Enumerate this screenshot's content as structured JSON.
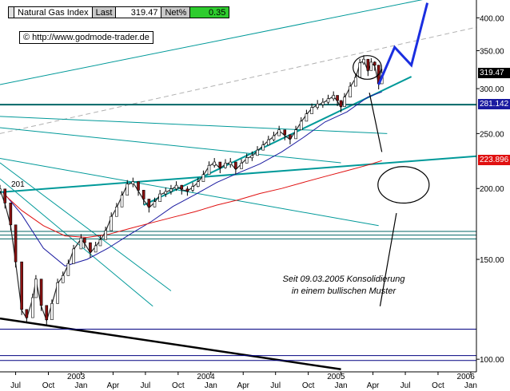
{
  "header": {
    "instrument": "Natural Gas Index",
    "last_label": "Last",
    "last_value": "319.47",
    "net_label": "Net%",
    "net_value": "0.35"
  },
  "source_url": "© http://www.godmode-trader.de",
  "annotation": {
    "line1": "Seit 09.03.2005 Konsolidierung",
    "line2": "in einem bullischen Muster"
  },
  "marker_201": "201",
  "price_badges": [
    {
      "label": "319.47",
      "value": 319.47,
      "color": "#000000"
    },
    {
      "label": "281.142",
      "value": 281.142,
      "color": "#1a1aa0"
    },
    {
      "label": "223.896",
      "value": 223.896,
      "color": "#e01010"
    }
  ],
  "chart_data": {
    "type": "line",
    "title": "Natural Gas Index",
    "yscale": "log",
    "ylim": [
      95,
      430
    ],
    "yticks": [
      100,
      150,
      200,
      250,
      300,
      350,
      400
    ],
    "ytick_labels": [
      "100.00",
      "150.00",
      "200.00",
      "250.00",
      "300.00",
      "350.00",
      "400.00"
    ],
    "xlim": [
      "2002-06-01",
      "2006-01-31"
    ],
    "xticks": [
      {
        "date": "2002-07-15",
        "label": "Jul"
      },
      {
        "date": "2002-10-15",
        "label": "Oct"
      },
      {
        "date": "2003-01-15",
        "label": "Jan"
      },
      {
        "date": "2003-04-15",
        "label": "Apr"
      },
      {
        "date": "2003-07-15",
        "label": "Jul"
      },
      {
        "date": "2003-10-15",
        "label": "Oct"
      },
      {
        "date": "2004-01-15",
        "label": "Jan"
      },
      {
        "date": "2004-04-15",
        "label": "Apr"
      },
      {
        "date": "2004-07-15",
        "label": "Jul"
      },
      {
        "date": "2004-10-15",
        "label": "Oct"
      },
      {
        "date": "2005-01-15",
        "label": "Jan"
      },
      {
        "date": "2005-04-15",
        "label": "Apr"
      },
      {
        "date": "2005-07-15",
        "label": "Jul"
      },
      {
        "date": "2005-10-15",
        "label": "Oct"
      },
      {
        "date": "2006-01-15",
        "label": "Jan"
      }
    ],
    "year_labels": [
      {
        "date": "2003-01-01",
        "label": "2003"
      },
      {
        "date": "2004-01-01",
        "label": "2004"
      },
      {
        "date": "2005-01-01",
        "label": "2005"
      },
      {
        "date": "2006-01-01",
        "label": "2006"
      }
    ],
    "series": [
      {
        "kind": "price",
        "color": "#8b1010",
        "points": [
          [
            "2002-06-01",
            199
          ],
          [
            "2002-06-15",
            188
          ],
          [
            "2002-07-01",
            172
          ],
          [
            "2002-07-15",
            148
          ],
          [
            "2002-08-01",
            122
          ],
          [
            "2002-08-15",
            118
          ],
          [
            "2002-09-01",
            128
          ],
          [
            "2002-09-10",
            138
          ],
          [
            "2002-09-25",
            124
          ],
          [
            "2002-10-10",
            117
          ],
          [
            "2002-10-25",
            125
          ],
          [
            "2002-11-10",
            136
          ],
          [
            "2002-11-25",
            140
          ],
          [
            "2002-12-10",
            147
          ],
          [
            "2002-12-25",
            156
          ],
          [
            "2003-01-15",
            163
          ],
          [
            "2003-01-25",
            160
          ],
          [
            "2003-02-10",
            154
          ],
          [
            "2003-02-25",
            158
          ],
          [
            "2003-03-10",
            162
          ],
          [
            "2003-03-25",
            168
          ],
          [
            "2003-04-10",
            178
          ],
          [
            "2003-04-25",
            185
          ],
          [
            "2003-05-10",
            194
          ],
          [
            "2003-05-25",
            203
          ],
          [
            "2003-06-10",
            205
          ],
          [
            "2003-06-25",
            198
          ],
          [
            "2003-07-10",
            191
          ],
          [
            "2003-07-25",
            185
          ],
          [
            "2003-08-10",
            189
          ],
          [
            "2003-08-25",
            195
          ],
          [
            "2003-09-10",
            197
          ],
          [
            "2003-09-25",
            199
          ],
          [
            "2003-10-10",
            202
          ],
          [
            "2003-10-25",
            199
          ],
          [
            "2003-11-10",
            198
          ],
          [
            "2003-11-25",
            201
          ],
          [
            "2003-12-10",
            205
          ],
          [
            "2003-12-25",
            211
          ],
          [
            "2004-01-10",
            219
          ],
          [
            "2004-01-25",
            222
          ],
          [
            "2004-02-10",
            217
          ],
          [
            "2004-02-25",
            221
          ],
          [
            "2004-03-10",
            222
          ],
          [
            "2004-03-25",
            216
          ],
          [
            "2004-04-10",
            221
          ],
          [
            "2004-04-25",
            226
          ],
          [
            "2004-05-10",
            228
          ],
          [
            "2004-05-25",
            233
          ],
          [
            "2004-06-10",
            238
          ],
          [
            "2004-06-25",
            243
          ],
          [
            "2004-07-10",
            247
          ],
          [
            "2004-07-25",
            253
          ],
          [
            "2004-08-10",
            248
          ],
          [
            "2004-08-25",
            244
          ],
          [
            "2004-09-10",
            253
          ],
          [
            "2004-09-25",
            262
          ],
          [
            "2004-10-10",
            270
          ],
          [
            "2004-10-25",
            277
          ],
          [
            "2004-11-10",
            281
          ],
          [
            "2004-11-25",
            283
          ],
          [
            "2004-12-10",
            287
          ],
          [
            "2004-12-25",
            291
          ],
          [
            "2005-01-05",
            285
          ],
          [
            "2005-01-15",
            278
          ],
          [
            "2005-01-25",
            289
          ],
          [
            "2005-02-10",
            302
          ],
          [
            "2005-02-25",
            313
          ],
          [
            "2005-03-09",
            332
          ],
          [
            "2005-03-20",
            337
          ],
          [
            "2005-04-01",
            322
          ],
          [
            "2005-04-10",
            333
          ],
          [
            "2005-04-20",
            329
          ],
          [
            "2005-05-01",
            305
          ],
          [
            "2005-05-10",
            319
          ]
        ]
      },
      {
        "kind": "moving_average",
        "color": "#1a1aa0",
        "points": [
          [
            "2002-06-10",
            197
          ],
          [
            "2002-08-01",
            180
          ],
          [
            "2002-10-01",
            157
          ],
          [
            "2002-12-01",
            146
          ],
          [
            "2003-02-01",
            150
          ],
          [
            "2003-04-01",
            157
          ],
          [
            "2003-06-01",
            166
          ],
          [
            "2003-08-01",
            175
          ],
          [
            "2003-10-01",
            186
          ],
          [
            "2003-12-01",
            195
          ],
          [
            "2004-02-01",
            205
          ],
          [
            "2004-04-01",
            213
          ],
          [
            "2004-06-01",
            221
          ],
          [
            "2004-08-01",
            232
          ],
          [
            "2004-10-01",
            246
          ],
          [
            "2004-12-01",
            262
          ],
          [
            "2005-02-01",
            273
          ],
          [
            "2005-04-01",
            290
          ],
          [
            "2005-05-10",
            296
          ]
        ]
      },
      {
        "kind": "moving_average",
        "color": "#e01010",
        "points": [
          [
            "2002-06-10",
            196
          ],
          [
            "2002-08-01",
            183
          ],
          [
            "2002-10-01",
            172
          ],
          [
            "2002-12-01",
            165
          ],
          [
            "2003-02-01",
            164
          ],
          [
            "2003-04-01",
            166
          ],
          [
            "2003-06-01",
            170
          ],
          [
            "2003-08-01",
            174
          ],
          [
            "2003-10-01",
            178
          ],
          [
            "2003-12-01",
            182
          ],
          [
            "2004-02-01",
            187
          ],
          [
            "2004-04-01",
            191
          ],
          [
            "2004-06-01",
            196
          ],
          [
            "2004-08-01",
            200
          ],
          [
            "2004-10-01",
            205
          ],
          [
            "2004-12-01",
            210
          ],
          [
            "2005-02-01",
            215
          ],
          [
            "2005-04-01",
            220
          ],
          [
            "2005-05-10",
            224
          ]
        ]
      },
      {
        "kind": "projection",
        "color": "#1a2ee0",
        "points": [
          [
            "2005-05-01",
            305
          ],
          [
            "2005-06-15",
            355
          ],
          [
            "2005-08-01",
            330
          ],
          [
            "2005-09-15",
            425
          ]
        ]
      }
    ],
    "trendlines": [
      {
        "color": "#009999",
        "width": 1,
        "from": [
          "2002-06-01",
          305
        ],
        "to": [
          "2006-01-31",
          450
        ]
      },
      {
        "color": "#b0b0b0",
        "width": 1,
        "dash": true,
        "from": [
          "2002-06-01",
          250
        ],
        "to": [
          "2006-01-31",
          385
        ]
      },
      {
        "color": "#009999",
        "width": 2,
        "from": [
          "2002-06-01",
          197
        ],
        "to": [
          "2006-01-31",
          228
        ]
      },
      {
        "color": "#009999",
        "width": 2,
        "from": [
          "2003-07-10",
          187
        ],
        "to": [
          "2005-08-01",
          315
        ]
      },
      {
        "color": "#009999",
        "width": 1,
        "from": [
          "2002-06-01",
          268
        ],
        "to": [
          "2005-05-25",
          250
        ]
      },
      {
        "color": "#009999",
        "width": 1,
        "from": [
          "2002-06-01",
          256
        ],
        "to": [
          "2005-01-15",
          222
        ]
      },
      {
        "color": "#009999",
        "width": 1,
        "from": [
          "2002-06-01",
          226
        ],
        "to": [
          "2005-05-01",
          172
        ]
      },
      {
        "color": "#009999",
        "width": 1,
        "from": [
          "2002-06-01",
          222
        ],
        "to": [
          "2003-09-25",
          132
        ]
      },
      {
        "color": "#009999",
        "width": 1,
        "from": [
          "2002-06-01",
          208
        ],
        "to": [
          "2003-08-05",
          124
        ]
      },
      {
        "color": "#000000",
        "width": 2.5,
        "from": [
          "2002-06-01",
          118
        ],
        "to": [
          "2005-01-15",
          96
        ]
      }
    ],
    "hlines": [
      {
        "value": 281.142,
        "color": "#006666",
        "width": 2
      },
      {
        "value": 168,
        "color": "#006666",
        "width": 1
      },
      {
        "value": 165.5,
        "color": "#006666",
        "width": 1
      },
      {
        "value": 163,
        "color": "#006666",
        "width": 1
      },
      {
        "value": 113,
        "color": "#000080",
        "width": 1
      },
      {
        "value": 101.5,
        "color": "#000080",
        "width": 1
      },
      {
        "value": 99.5,
        "color": "#000080",
        "width": 1
      }
    ],
    "highlights": [
      {
        "center": [
          "2005-03-30",
          327
        ],
        "rx_days": 40,
        "ry_ratio": 1.2
      },
      {
        "center": [
          "2005-07-10",
          203
        ],
        "rx_days": 72,
        "ry_ratio": 1.4
      }
    ],
    "callout_lines": [
      {
        "from": [
          "2005-04-05",
          295
        ],
        "to": [
          "2005-05-10",
          232
        ]
      },
      {
        "from": [
          "2005-06-20",
          181
        ],
        "to": [
          "2005-05-05",
          124
        ]
      }
    ],
    "grid": false
  }
}
